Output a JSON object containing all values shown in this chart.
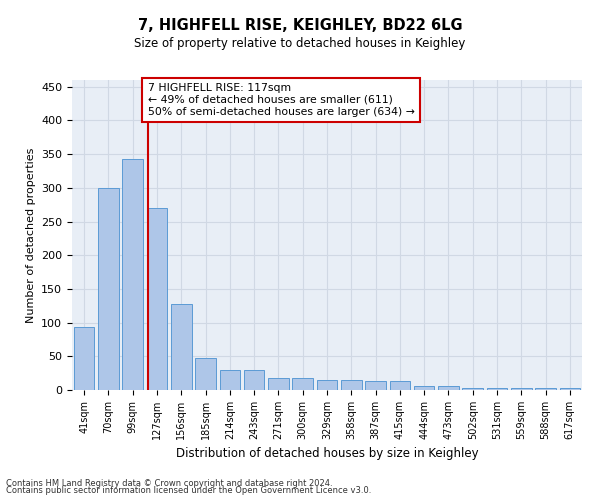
{
  "title": "7, HIGHFELL RISE, KEIGHLEY, BD22 6LG",
  "subtitle": "Size of property relative to detached houses in Keighley",
  "xlabel": "Distribution of detached houses by size in Keighley",
  "ylabel": "Number of detached properties",
  "categories": [
    "41sqm",
    "70sqm",
    "99sqm",
    "127sqm",
    "156sqm",
    "185sqm",
    "214sqm",
    "243sqm",
    "271sqm",
    "300sqm",
    "329sqm",
    "358sqm",
    "387sqm",
    "415sqm",
    "444sqm",
    "473sqm",
    "502sqm",
    "531sqm",
    "559sqm",
    "588sqm",
    "617sqm"
  ],
  "values": [
    93,
    300,
    343,
    270,
    128,
    47,
    30,
    30,
    18,
    18,
    15,
    15,
    13,
    13,
    6,
    6,
    3,
    3,
    3,
    3,
    3
  ],
  "bar_color": "#aec6e8",
  "bar_edge_color": "#5b9bd5",
  "grid_color": "#d0d8e4",
  "background_color": "#e8eef6",
  "vline_x": 2.62,
  "vline_color": "#cc0000",
  "annotation_text": "7 HIGHFELL RISE: 117sqm\n← 49% of detached houses are smaller (611)\n50% of semi-detached houses are larger (634) →",
  "annotation_box_color": "#ffffff",
  "annotation_box_edge_color": "#cc0000",
  "ylim": [
    0,
    460
  ],
  "yticks": [
    0,
    50,
    100,
    150,
    200,
    250,
    300,
    350,
    400,
    450
  ],
  "footer1": "Contains HM Land Registry data © Crown copyright and database right 2024.",
  "footer2": "Contains public sector information licensed under the Open Government Licence v3.0."
}
